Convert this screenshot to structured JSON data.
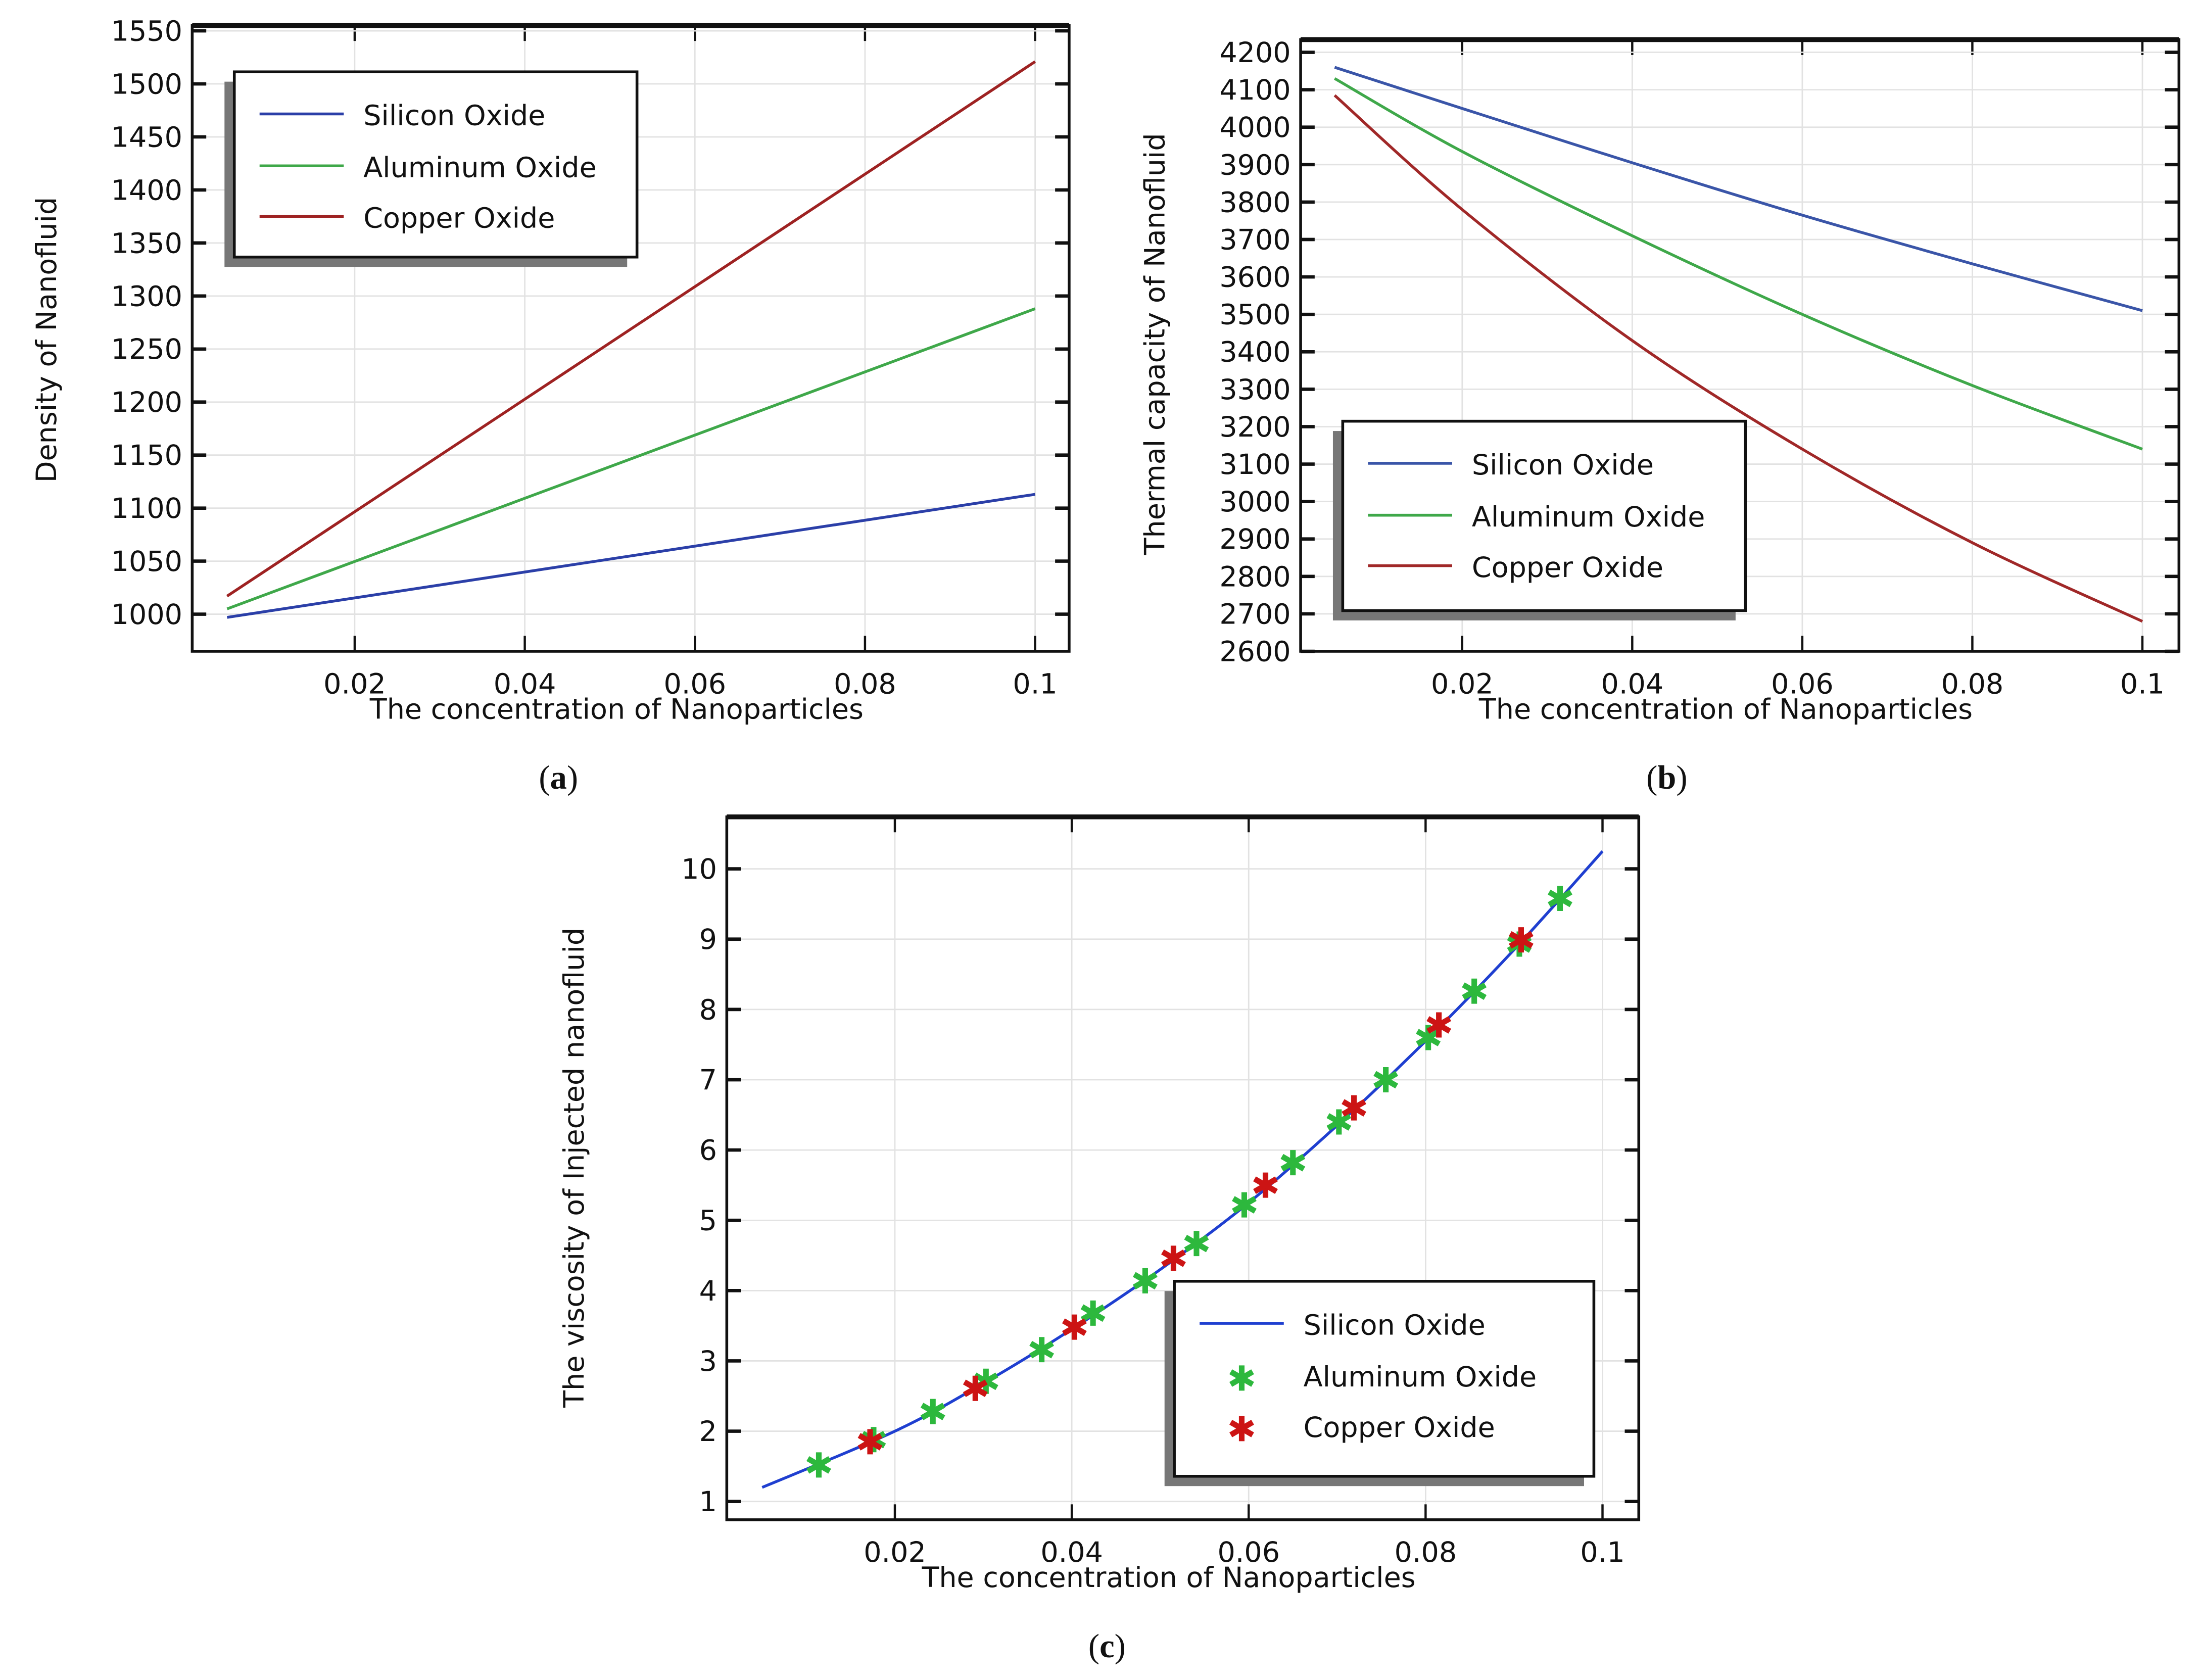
{
  "chart_data": [
    {
      "panel": "a",
      "caption": {
        "open": "(",
        "letter": "a",
        "close": ")"
      },
      "type": "line",
      "xlabel": "The concentration of Nanoparticles",
      "ylabel": "Density of Nanofluid",
      "xlim": [
        0.0009,
        0.104
      ],
      "ylim": [
        965,
        1555
      ],
      "xticks": [
        0.02,
        0.04,
        0.06,
        0.08,
        0.1
      ],
      "xtick_labels": [
        "0.02",
        "0.04",
        "0.06",
        "0.08",
        "0.1"
      ],
      "yticks": [
        1000,
        1050,
        1100,
        1150,
        1200,
        1250,
        1300,
        1350,
        1400,
        1450,
        1500,
        1550
      ],
      "ytick_labels": [
        "1000",
        "1050",
        "1100",
        "1150",
        "1200",
        "1250",
        "1300",
        "1350",
        "1400",
        "1450",
        "1500",
        "1550"
      ],
      "grid": true,
      "legend_position": "top-left",
      "x": [
        0.005,
        0.1
      ],
      "series": [
        {
          "name": "Silicon Oxide",
          "color": "#2b3fa8",
          "style": "line",
          "values": [
            997,
            1113
          ]
        },
        {
          "name": "Aluminum Oxide",
          "color": "#3fa84a",
          "style": "line",
          "values": [
            1005,
            1288
          ]
        },
        {
          "name": "Copper Oxide",
          "color": "#9e2222",
          "style": "line",
          "values": [
            1017,
            1521
          ]
        }
      ]
    },
    {
      "panel": "b",
      "caption": {
        "open": "(",
        "letter": "b",
        "close": ")"
      },
      "type": "line",
      "xlabel": "The concentration of Nanoparticles",
      "ylabel": "Thermal capacity of Nanofluid",
      "xlim": [
        0.001,
        0.1043
      ],
      "ylim": [
        2600,
        4234
      ],
      "xticks": [
        0.02,
        0.04,
        0.06,
        0.08,
        0.1
      ],
      "xtick_labels": [
        "0.02",
        "0.04",
        "0.06",
        "0.08",
        "0.1"
      ],
      "yticks": [
        2600,
        2700,
        2800,
        2900,
        3000,
        3100,
        3200,
        3300,
        3400,
        3500,
        3600,
        3700,
        3800,
        3900,
        4000,
        4100,
        4200
      ],
      "ytick_labels": [
        "2600",
        "2700",
        "2800",
        "2900",
        "3000",
        "3100",
        "3200",
        "3300",
        "3400",
        "3500",
        "3600",
        "3700",
        "3800",
        "3900",
        "4000",
        "4100",
        "4200"
      ],
      "grid": true,
      "legend_position": "bottom-left",
      "x": [
        0.005,
        0.02,
        0.04,
        0.06,
        0.08,
        0.1
      ],
      "series": [
        {
          "name": "Silicon Oxide",
          "color": "#3a55a8",
          "style": "line",
          "values": [
            4160,
            4050,
            3905,
            3765,
            3635,
            3510
          ]
        },
        {
          "name": "Aluminum Oxide",
          "color": "#3fa84a",
          "style": "line",
          "values": [
            4130,
            3935,
            3710,
            3500,
            3310,
            3140
          ]
        },
        {
          "name": "Copper Oxide",
          "color": "#a02828",
          "style": "line",
          "values": [
            4085,
            3780,
            3430,
            3140,
            2890,
            2680
          ]
        }
      ]
    },
    {
      "panel": "c",
      "caption": {
        "open": "(",
        "letter": "c",
        "close": ")"
      },
      "type": "line",
      "xlabel": "The concentration of Nanoparticles",
      "ylabel": "The viscosity of Injected nanofluid",
      "xlim": [
        0.001,
        0.1041
      ],
      "ylim": [
        0.74,
        10.74
      ],
      "xticks": [
        0.02,
        0.04,
        0.06,
        0.08,
        0.1
      ],
      "xtick_labels": [
        "0.02",
        "0.04",
        "0.06",
        "0.08",
        "0.1"
      ],
      "yticks": [
        1,
        2,
        3,
        4,
        5,
        6,
        7,
        8,
        9,
        10
      ],
      "ytick_labels": [
        "1",
        "2",
        "3",
        "4",
        "5",
        "6",
        "7",
        "8",
        "9",
        "10"
      ],
      "grid": true,
      "legend_position": "bottom-right",
      "series": [
        {
          "name": "Silicon Oxide",
          "color": "#1f3fd0",
          "style": "line",
          "x": [
            0.005,
            0.02,
            0.03,
            0.04,
            0.05,
            0.06,
            0.07,
            0.08,
            0.09,
            0.1
          ],
          "values": [
            1.2,
            2.0,
            2.68,
            3.45,
            4.3,
            5.25,
            6.35,
            7.55,
            8.85,
            10.25
          ]
        },
        {
          "name": "Aluminum Oxide",
          "color": "#2db83d",
          "style": "marker",
          "x": [
            0.0114,
            0.0176,
            0.0243,
            0.0303,
            0.0366,
            0.0424,
            0.0483,
            0.0541,
            0.0595,
            0.065,
            0.0702,
            0.0755,
            0.0803,
            0.0855,
            0.0906,
            0.0952
          ],
          "values": [
            1.52,
            1.88,
            2.28,
            2.71,
            3.16,
            3.68,
            4.14,
            4.67,
            5.22,
            5.82,
            6.4,
            7.0,
            7.6,
            8.26,
            8.93,
            9.58
          ]
        },
        {
          "name": "Copper Oxide",
          "color": "#cc1414",
          "style": "marker",
          "x": [
            0.0172,
            0.0291,
            0.0403,
            0.0515,
            0.0619,
            0.0719,
            0.0815,
            0.0908
          ],
          "values": [
            1.85,
            2.61,
            3.48,
            4.46,
            5.5,
            6.6,
            7.78,
            8.99
          ]
        }
      ]
    }
  ]
}
